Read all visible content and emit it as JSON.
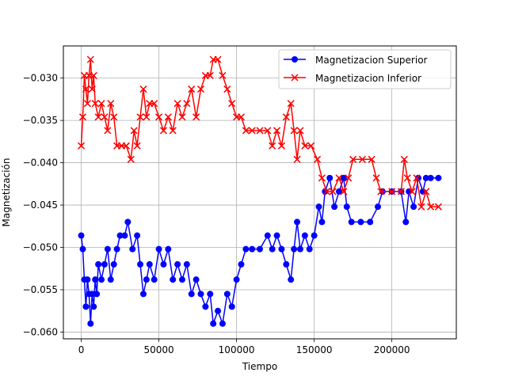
{
  "chart_data": {
    "type": "line",
    "title": "",
    "xlabel": "Tiempo",
    "ylabel": "Magnetización",
    "xlim": [
      -11500,
      241500
    ],
    "ylim": [
      -0.0608,
      -0.0262
    ],
    "xticks": [
      0,
      50000,
      100000,
      150000,
      200000
    ],
    "xtick_labels": [
      "0",
      "50000",
      "100000",
      "150000",
      "200000"
    ],
    "yticks": [
      -0.06,
      -0.055,
      -0.05,
      -0.045,
      -0.04,
      -0.035,
      -0.03
    ],
    "ytick_labels": [
      "−0.060",
      "−0.055",
      "−0.050",
      "−0.045",
      "−0.040",
      "−0.035",
      "−0.030"
    ],
    "grid": true,
    "legend_position": "top-right",
    "series": [
      {
        "name": "Magnetizacion Superior",
        "color": "#0000ff",
        "marker": "circle",
        "points": [
          [
            0,
            -0.0486
          ],
          [
            1000,
            -0.0502
          ],
          [
            2000,
            -0.0538
          ],
          [
            3000,
            -0.057
          ],
          [
            4000,
            -0.0538
          ],
          [
            5000,
            -0.0555
          ],
          [
            6000,
            -0.059
          ],
          [
            7000,
            -0.0555
          ],
          [
            8000,
            -0.057
          ],
          [
            9000,
            -0.0538
          ],
          [
            10000,
            -0.0555
          ],
          [
            11000,
            -0.052
          ],
          [
            13000,
            -0.0538
          ],
          [
            15000,
            -0.052
          ],
          [
            17000,
            -0.0502
          ],
          [
            19000,
            -0.0538
          ],
          [
            21000,
            -0.052
          ],
          [
            23000,
            -0.0502
          ],
          [
            25000,
            -0.0486
          ],
          [
            28000,
            -0.0486
          ],
          [
            30000,
            -0.047
          ],
          [
            33000,
            -0.0502
          ],
          [
            36000,
            -0.0486
          ],
          [
            38000,
            -0.052
          ],
          [
            40000,
            -0.0555
          ],
          [
            42000,
            -0.0538
          ],
          [
            44000,
            -0.052
          ],
          [
            47000,
            -0.0538
          ],
          [
            50000,
            -0.0502
          ],
          [
            53000,
            -0.052
          ],
          [
            56000,
            -0.0502
          ],
          [
            59000,
            -0.0538
          ],
          [
            62000,
            -0.052
          ],
          [
            65000,
            -0.0538
          ],
          [
            68000,
            -0.052
          ],
          [
            71000,
            -0.0555
          ],
          [
            74000,
            -0.0538
          ],
          [
            77000,
            -0.0555
          ],
          [
            80000,
            -0.057
          ],
          [
            83000,
            -0.0555
          ],
          [
            85000,
            -0.059
          ],
          [
            88000,
            -0.0575
          ],
          [
            91000,
            -0.059
          ],
          [
            94000,
            -0.0555
          ],
          [
            97000,
            -0.057
          ],
          [
            100000,
            -0.0538
          ],
          [
            103000,
            -0.052
          ],
          [
            106000,
            -0.0502
          ],
          [
            110000,
            -0.0502
          ],
          [
            115000,
            -0.0502
          ],
          [
            120000,
            -0.0486
          ],
          [
            123000,
            -0.0502
          ],
          [
            126000,
            -0.0486
          ],
          [
            129000,
            -0.0502
          ],
          [
            132000,
            -0.052
          ],
          [
            135000,
            -0.0538
          ],
          [
            137000,
            -0.0502
          ],
          [
            139000,
            -0.047
          ],
          [
            141000,
            -0.0502
          ],
          [
            144000,
            -0.0486
          ],
          [
            147000,
            -0.0502
          ],
          [
            150000,
            -0.0486
          ],
          [
            153000,
            -0.0452
          ],
          [
            155000,
            -0.047
          ],
          [
            157000,
            -0.0434
          ],
          [
            160000,
            -0.0418
          ],
          [
            163000,
            -0.0452
          ],
          [
            166000,
            -0.0434
          ],
          [
            169000,
            -0.0418
          ],
          [
            171000,
            -0.0452
          ],
          [
            174000,
            -0.047
          ],
          [
            180000,
            -0.047
          ],
          [
            186000,
            -0.047
          ],
          [
            191000,
            -0.0452
          ],
          [
            194000,
            -0.0434
          ],
          [
            200000,
            -0.0434
          ],
          [
            206000,
            -0.0434
          ],
          [
            209000,
            -0.047
          ],
          [
            211000,
            -0.0434
          ],
          [
            214000,
            -0.0452
          ],
          [
            217000,
            -0.0418
          ],
          [
            220000,
            -0.0434
          ],
          [
            222000,
            -0.0418
          ],
          [
            225000,
            -0.0418
          ],
          [
            230000,
            -0.0418
          ]
        ]
      },
      {
        "name": "Magnetizacion Inferior",
        "color": "#ff0000",
        "marker": "x",
        "points": [
          [
            0,
            -0.038
          ],
          [
            1000,
            -0.0346
          ],
          [
            2000,
            -0.0297
          ],
          [
            3000,
            -0.0313
          ],
          [
            4000,
            -0.033
          ],
          [
            5000,
            -0.0297
          ],
          [
            6000,
            -0.0278
          ],
          [
            7000,
            -0.0313
          ],
          [
            8000,
            -0.0297
          ],
          [
            9000,
            -0.033
          ],
          [
            11000,
            -0.0346
          ],
          [
            13000,
            -0.033
          ],
          [
            15000,
            -0.0346
          ],
          [
            17000,
            -0.0362
          ],
          [
            19000,
            -0.033
          ],
          [
            21000,
            -0.0346
          ],
          [
            23000,
            -0.038
          ],
          [
            26000,
            -0.038
          ],
          [
            29000,
            -0.038
          ],
          [
            32000,
            -0.0396
          ],
          [
            34000,
            -0.0362
          ],
          [
            36000,
            -0.038
          ],
          [
            38000,
            -0.0346
          ],
          [
            40000,
            -0.0313
          ],
          [
            42000,
            -0.0346
          ],
          [
            44000,
            -0.033
          ],
          [
            47000,
            -0.033
          ],
          [
            50000,
            -0.0346
          ],
          [
            53000,
            -0.0362
          ],
          [
            56000,
            -0.0346
          ],
          [
            59000,
            -0.0362
          ],
          [
            62000,
            -0.033
          ],
          [
            65000,
            -0.0346
          ],
          [
            68000,
            -0.033
          ],
          [
            71000,
            -0.0313
          ],
          [
            74000,
            -0.0346
          ],
          [
            77000,
            -0.0313
          ],
          [
            80000,
            -0.0297
          ],
          [
            83000,
            -0.0297
          ],
          [
            85000,
            -0.0278
          ],
          [
            88000,
            -0.0278
          ],
          [
            91000,
            -0.0297
          ],
          [
            94000,
            -0.0313
          ],
          [
            97000,
            -0.033
          ],
          [
            100000,
            -0.0346
          ],
          [
            103000,
            -0.0346
          ],
          [
            106000,
            -0.0362
          ],
          [
            110000,
            -0.0362
          ],
          [
            115000,
            -0.0362
          ],
          [
            120000,
            -0.0362
          ],
          [
            123000,
            -0.038
          ],
          [
            126000,
            -0.0362
          ],
          [
            129000,
            -0.038
          ],
          [
            132000,
            -0.0346
          ],
          [
            135000,
            -0.033
          ],
          [
            137000,
            -0.0362
          ],
          [
            139000,
            -0.0396
          ],
          [
            141000,
            -0.0362
          ],
          [
            144000,
            -0.038
          ],
          [
            148000,
            -0.038
          ],
          [
            152000,
            -0.0396
          ],
          [
            155000,
            -0.0418
          ],
          [
            158000,
            -0.0434
          ],
          [
            162000,
            -0.0434
          ],
          [
            166000,
            -0.0418
          ],
          [
            169000,
            -0.0434
          ],
          [
            172000,
            -0.0418
          ],
          [
            175000,
            -0.0396
          ],
          [
            181000,
            -0.0396
          ],
          [
            187000,
            -0.0396
          ],
          [
            190000,
            -0.0418
          ],
          [
            193000,
            -0.0434
          ],
          [
            200000,
            -0.0434
          ],
          [
            206000,
            -0.0434
          ],
          [
            208000,
            -0.0396
          ],
          [
            210000,
            -0.0418
          ],
          [
            213000,
            -0.0434
          ],
          [
            216000,
            -0.0418
          ],
          [
            219000,
            -0.0452
          ],
          [
            222000,
            -0.0434
          ],
          [
            225000,
            -0.0452
          ],
          [
            230000,
            -0.0452
          ]
        ]
      }
    ]
  }
}
